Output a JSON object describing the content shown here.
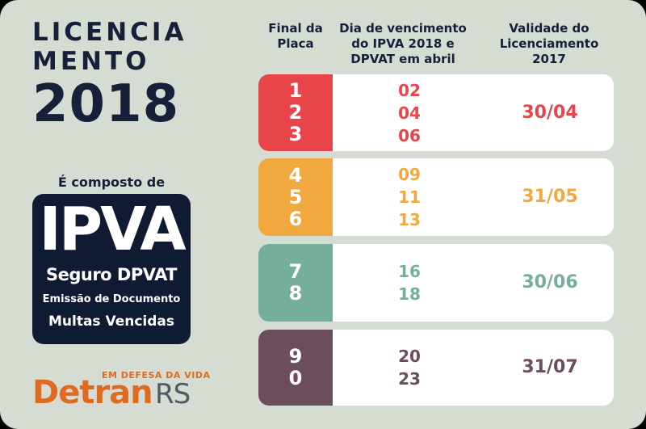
{
  "title": {
    "line1": "LICENCIA",
    "line2": "MENTO",
    "line3": "2018"
  },
  "composto": "É composto de",
  "ipva_box": {
    "big": "IPVA",
    "seguro": "Seguro DPVAT",
    "emissao": "Emissão de Documento",
    "multas": "Multas Vencidas"
  },
  "logo": {
    "tagline": "EM DEFESA DA VIDA",
    "detran": "Detran",
    "rs": "RS"
  },
  "headers": {
    "final": "Final da Placa",
    "dia": "Dia de vencimento do IPVA 2018 e DPVAT em abril",
    "validade": "Validade do Licenciamento 2017"
  },
  "rows": [
    {
      "plates": [
        "1",
        "2",
        "3"
      ],
      "days": [
        "02",
        "04",
        "06"
      ],
      "validade": "30/04",
      "color": "#e8454a"
    },
    {
      "plates": [
        "4",
        "5",
        "6"
      ],
      "days": [
        "09",
        "11",
        "13"
      ],
      "validade": "31/05",
      "color": "#f1a93f"
    },
    {
      "plates": [
        "7",
        "8"
      ],
      "days": [
        "16",
        "18"
      ],
      "validade": "30/06",
      "color": "#75ae9b"
    },
    {
      "plates": [
        "9",
        "0"
      ],
      "days": [
        "20",
        "23"
      ],
      "validade": "31/07",
      "color": "#6c4d5d"
    }
  ],
  "colors": {
    "background": "#d5ddd3",
    "navy": "#0f1a33",
    "detran_orange": "#e06b1f",
    "rs_gray": "#505a66"
  }
}
